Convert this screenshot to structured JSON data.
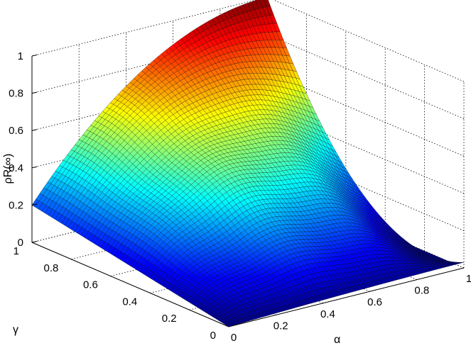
{
  "chart_data": {
    "type": "surface",
    "title": "",
    "xlabel": "α",
    "ylabel": "γ",
    "zlabel": "ρR(∞)",
    "xlim": [
      0,
      1
    ],
    "ylim": [
      0,
      1
    ],
    "zlim": [
      0,
      1
    ],
    "xticks": [
      "0",
      "0.2",
      "0.4",
      "0.6",
      "0.8",
      "1"
    ],
    "yticks": [
      "0",
      "0.2",
      "0.4",
      "0.6",
      "0.8",
      "1"
    ],
    "zticks": [
      "0",
      "0.2",
      "0.4",
      "0.6",
      "0.8",
      "1"
    ],
    "grid": true,
    "colormap": "jet",
    "corner_values": {
      "alpha0_gamma0": 0.0,
      "alpha1_gamma0": 0.03,
      "alpha0_gamma1": 0.2,
      "alpha1_gamma1": 1.0
    },
    "edge_values": {
      "alpha0_gamma0.5": 0.1,
      "alpha1_gamma0.5": 0.15,
      "alpha0.5_gamma0": 0.02,
      "alpha0.5_gamma1": 0.8,
      "center": 0.45
    }
  }
}
